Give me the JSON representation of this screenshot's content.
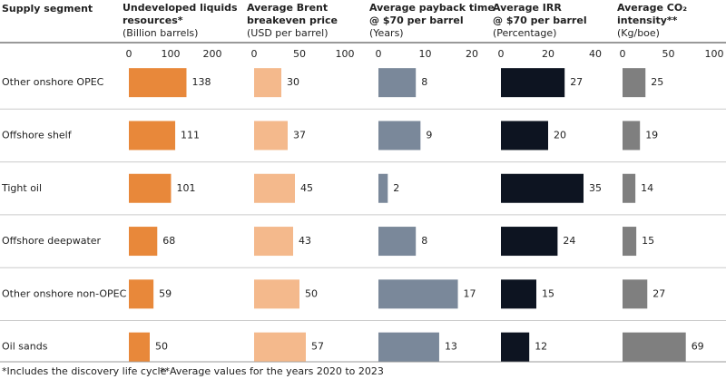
{
  "header": "Supply segment",
  "categories": [
    "Other onshore OPEC",
    "Offshore shelf",
    "Tight oil",
    "Offshore deepwater",
    "Other onshore non-OPEC",
    "Oil sands"
  ],
  "chart_data": [
    {
      "type": "bar",
      "title": "Undeveloped liquids\nresources*",
      "subtitle": "(Billion barrels)",
      "values": [
        138,
        111,
        101,
        68,
        59,
        50
      ],
      "color": "#e8883a",
      "xlim": [
        0,
        200
      ],
      "xticks": [
        0,
        100,
        200
      ]
    },
    {
      "type": "bar",
      "title": "Average Brent\nbreakeven price",
      "subtitle": "(USD per barrel)",
      "values": [
        30,
        37,
        45,
        43,
        50,
        57
      ],
      "color": "#f4b98c",
      "xlim": [
        0,
        100
      ],
      "xticks": [
        0,
        50,
        100
      ]
    },
    {
      "type": "bar",
      "title": "Average payback time\n@ $70 per barrel",
      "subtitle": "(Years)",
      "values": [
        8,
        9,
        2,
        8,
        17,
        13
      ],
      "color": "#7a889a",
      "xlim": [
        0,
        20
      ],
      "xticks": [
        0,
        10,
        20
      ]
    },
    {
      "type": "bar",
      "title": "Average IRR\n@ $70 per barrel",
      "subtitle": "(Percentage)",
      "values": [
        27,
        20,
        35,
        24,
        15,
        12
      ],
      "color": "#0d1421",
      "xlim": [
        0,
        40
      ],
      "xticks": [
        0,
        20,
        40
      ]
    },
    {
      "type": "bar",
      "title": "Average CO₂\nintensity**",
      "subtitle": "(Kg/boe)",
      "values": [
        25,
        19,
        14,
        15,
        27,
        69
      ],
      "color": "#7f7f7f",
      "xlim": [
        0,
        100
      ],
      "xticks": [
        0,
        50,
        100
      ]
    }
  ],
  "footnotes": [
    "*Includes the discovery life cycle",
    "**Average values for the years 2020 to 2023"
  ]
}
